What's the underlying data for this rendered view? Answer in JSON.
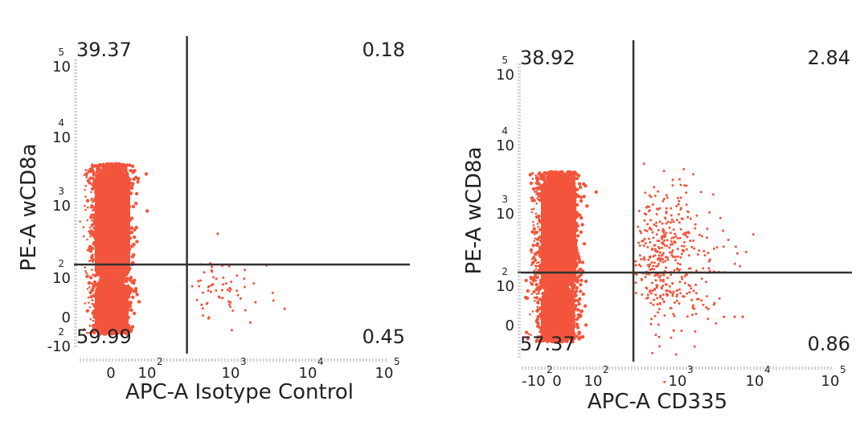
{
  "chart_data": [
    {
      "type": "scatter",
      "xlabel": "APC-A Isotype Control",
      "ylabel": "PE-A wCD8a",
      "x_ticks": [
        {
          "base": "0",
          "exp": "",
          "value": 0
        },
        {
          "base": "10",
          "exp": "2",
          "value": 100
        },
        {
          "base": "10",
          "exp": "3",
          "value": 1000
        },
        {
          "base": "10",
          "exp": "4",
          "value": 10000
        },
        {
          "base": "10",
          "exp": "5",
          "value": 100000
        }
      ],
      "y_ticks": [
        {
          "base": "-10",
          "exp": "2",
          "value": -100
        },
        {
          "base": "0",
          "exp": "",
          "value": 0
        },
        {
          "base": "10",
          "exp": "2",
          "value": 100
        },
        {
          "base": "10",
          "exp": "3",
          "value": 1000
        },
        {
          "base": "10",
          "exp": "4",
          "value": 10000
        },
        {
          "base": "10",
          "exp": "5",
          "value": 100000
        }
      ],
      "xlim": [
        -100,
        120000
      ],
      "ylim": [
        -120,
        120000
      ],
      "gate": {
        "x": 300,
        "y": 150
      },
      "quadrants": {
        "upper_left": "39.37",
        "upper_right": "0.18",
        "lower_left": "59.99",
        "lower_right": "0.45"
      },
      "color": "#f2553c"
    },
    {
      "type": "scatter",
      "xlabel": "APC-A CD335",
      "ylabel": "PE-A wCD8a",
      "x_ticks": [
        {
          "base": "-10",
          "exp": "2",
          "value": -100
        },
        {
          "base": "0",
          "exp": "",
          "value": 0
        },
        {
          "base": "10",
          "exp": "2",
          "value": 100
        },
        {
          "base": "10",
          "exp": "3",
          "value": 1000
        },
        {
          "base": "10",
          "exp": "4",
          "value": 10000
        },
        {
          "base": "10",
          "exp": "5",
          "value": 100000
        }
      ],
      "y_ticks": [
        {
          "base": "0",
          "exp": "",
          "value": 0
        },
        {
          "base": "10",
          "exp": "2",
          "value": 100
        },
        {
          "base": "10",
          "exp": "3",
          "value": 1000
        },
        {
          "base": "10",
          "exp": "4",
          "value": 10000
        },
        {
          "base": "10",
          "exp": "5",
          "value": 100000
        }
      ],
      "xlim": [
        -150,
        120000
      ],
      "ylim": [
        -100,
        120000
      ],
      "gate": {
        "x": 300,
        "y": 150
      },
      "quadrants": {
        "upper_left": "38.92",
        "upper_right": "2.84",
        "lower_left": "57.37",
        "lower_right": "0.86"
      },
      "color": "#f2553c"
    }
  ]
}
